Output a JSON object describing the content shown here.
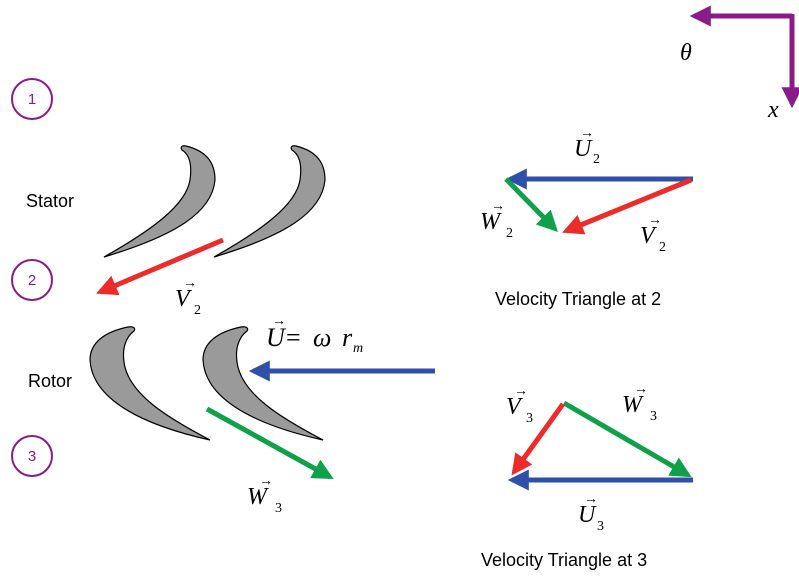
{
  "colors": {
    "absolute_velocity": "#ee2b2b",
    "relative_velocity": "#0fa04a",
    "blade_speed": "#2f4fa8",
    "axes": "#8b1a8b",
    "station_circle": "#8b1a8b",
    "blade_fill": "#9a9a9a"
  },
  "axes": {
    "theta_label": "θ",
    "x_label": "x"
  },
  "stations": [
    "1",
    "2",
    "3"
  ],
  "labels": {
    "stator": "Stator",
    "rotor": "Rotor",
    "triangle2_caption": "Velocity Triangle at 2",
    "triangle3_caption": "Velocity Triangle at 3"
  },
  "vectors": {
    "V": "V",
    "W": "W",
    "U": "U",
    "arrow": "→",
    "sub2": "2",
    "sub3": "3",
    "equals": "=",
    "omega": "ω",
    "r": "r",
    "sub_m": "m"
  }
}
